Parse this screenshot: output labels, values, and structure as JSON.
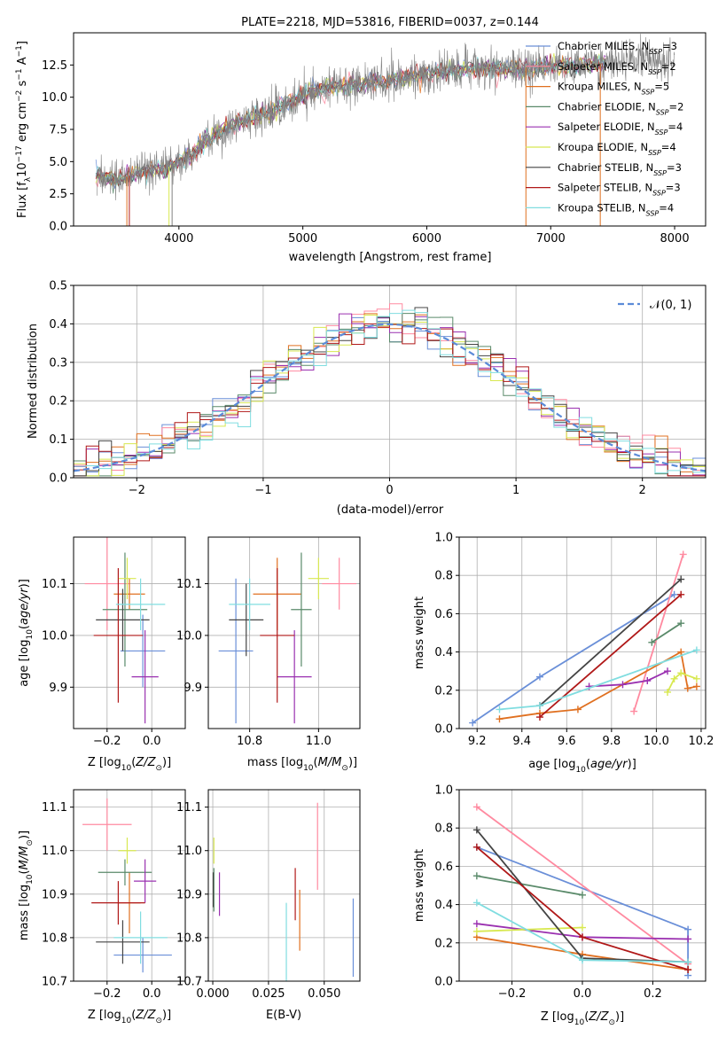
{
  "chart_data": [
    {
      "type": "line",
      "title": "PLATE=2218, MJD=53816, FIBERID=0037, z=0.144",
      "xlabel": "wavelength [Angstrom, rest frame]",
      "ylabel": "Flux [f_λ10^-17 erg cm^-2 s^-1 A^-1]",
      "xlim": [
        3150,
        8250
      ],
      "ylim": [
        0,
        15
      ],
      "xticks": [
        "4000",
        "5000",
        "6000",
        "7000",
        "8000"
      ],
      "yticks": [
        "0.0",
        "2.5",
        "5.0",
        "7.5",
        "10.0",
        "12.5"
      ],
      "observed_color": "#808080",
      "legend_position": "upper-right",
      "series": [
        {
          "name": "Chabrier MILES, N_SSP=3",
          "color": "#6a8fd8"
        },
        {
          "name": "Salpeter MILES, N_SSP=2",
          "color": "#ff8aa0"
        },
        {
          "name": "Kroupa MILES, N_SSP=5",
          "color": "#e07020"
        },
        {
          "name": "Chabrier ELODIE, N_SSP=2",
          "color": "#5a8a6a"
        },
        {
          "name": "Salpeter ELODIE, N_SSP=4",
          "color": "#9a30b0"
        },
        {
          "name": "Kroupa ELODIE, N_SSP=4",
          "color": "#d8e850"
        },
        {
          "name": "Chabrier STELIB, N_SSP=3",
          "color": "#444444"
        },
        {
          "name": "Salpeter STELIB, N_SSP=3",
          "color": "#b01818"
        },
        {
          "name": "Kroupa STELIB, N_SSP=4",
          "color": "#80dde0"
        }
      ],
      "spectrum_envelope": {
        "wavelength": [
          3350,
          3500,
          3700,
          3900,
          4100,
          4300,
          4500,
          4800,
          5000,
          5200,
          5500,
          5800,
          6000,
          6300,
          6600,
          7000,
          7400,
          7800,
          8000
        ],
        "flux": [
          3.8,
          3.6,
          4.2,
          4.5,
          5.5,
          7.2,
          8.2,
          9.1,
          10.2,
          10.8,
          11.0,
          11.5,
          11.8,
          12.2,
          12.2,
          12.4,
          12.6,
          12.8,
          12.9
        ]
      }
    },
    {
      "type": "line",
      "xlabel": "(data-model)/error",
      "ylabel": "Normed distribution",
      "xlim": [
        -2.5,
        2.5
      ],
      "ylim": [
        0,
        0.5
      ],
      "xticks": [
        "−2",
        "−1",
        "0",
        "1",
        "2"
      ],
      "yticks": [
        "0.0",
        "0.1",
        "0.2",
        "0.3",
        "0.4",
        "0.5"
      ],
      "legend": "𝒩(0, 1)",
      "reference_color": "#5b8bd8",
      "histogram_bins": [
        -2.5,
        -2.4,
        -2.3,
        -2.2,
        -2.1,
        -2.0,
        -1.9,
        -1.8,
        -1.7,
        -1.6,
        -1.5,
        -1.4,
        -1.3,
        -1.2,
        -1.1,
        -1.0,
        -0.9,
        -0.8,
        -0.7,
        -0.6,
        -0.5,
        -0.4,
        -0.3,
        -0.2,
        -0.1,
        0.0,
        0.1,
        0.2,
        0.3,
        0.4,
        0.5,
        0.6,
        0.7,
        0.8,
        0.9,
        1.0,
        1.1,
        1.2,
        1.3,
        1.4,
        1.5,
        1.6,
        1.7,
        1.8,
        1.9,
        2.0,
        2.1,
        2.2,
        2.3,
        2.4,
        2.5
      ]
    },
    {
      "type": "scatter",
      "xlabel": "Z [log10(Z/Z☉)]",
      "ylabel": "age  [log10(age/yr)]",
      "xlim": [
        -0.35,
        0.15
      ],
      "ylim": [
        9.82,
        10.19
      ],
      "xticks": [
        "−0.2",
        "0.0"
      ],
      "yticks": [
        "9.9",
        "10.0",
        "10.1"
      ],
      "points": [
        {
          "x": -0.04,
          "y": 9.97,
          "xerr": 0.1,
          "yerr": 0.07,
          "color": "#6a8fd8"
        },
        {
          "x": -0.2,
          "y": 10.1,
          "xerr": 0.1,
          "yerr": 0.09,
          "color": "#ff8aa0"
        },
        {
          "x": -0.1,
          "y": 10.08,
          "xerr": 0.07,
          "yerr": 0.03,
          "color": "#e07020"
        },
        {
          "x": -0.12,
          "y": 10.05,
          "xerr": 0.1,
          "yerr": 0.11,
          "color": "#5a8a6a"
        },
        {
          "x": -0.03,
          "y": 9.92,
          "xerr": 0.06,
          "yerr": 0.09,
          "color": "#9a30b0"
        },
        {
          "x": -0.11,
          "y": 10.11,
          "xerr": 0.04,
          "yerr": 0.04,
          "color": "#d8e850"
        },
        {
          "x": -0.13,
          "y": 10.03,
          "xerr": 0.12,
          "yerr": 0.06,
          "color": "#444444"
        },
        {
          "x": -0.15,
          "y": 10.0,
          "xerr": 0.11,
          "yerr": 0.13,
          "color": "#b01818"
        },
        {
          "x": -0.05,
          "y": 10.06,
          "xerr": 0.11,
          "yerr": 0.05,
          "color": "#80dde0"
        }
      ]
    },
    {
      "type": "scatter",
      "xlabel": "mass [log10(M/M☉)]",
      "ylabel": "",
      "xlim": [
        10.68,
        11.12
      ],
      "ylim": [
        9.82,
        10.19
      ],
      "xticks": [
        "10.8",
        "11.0"
      ],
      "yticks": [
        "9.9",
        "10.0",
        "10.1"
      ],
      "points": [
        {
          "x": 10.76,
          "y": 9.97,
          "xerr": 0.05,
          "yerr": 0.14,
          "color": "#6a8fd8"
        },
        {
          "x": 11.06,
          "y": 10.1,
          "xerr": 0.05,
          "yerr": 0.05,
          "color": "#ff8aa0"
        },
        {
          "x": 10.88,
          "y": 10.08,
          "xerr": 0.07,
          "yerr": 0.07,
          "color": "#e07020"
        },
        {
          "x": 10.95,
          "y": 10.05,
          "xerr": 0.03,
          "yerr": 0.11,
          "color": "#5a8a6a"
        },
        {
          "x": 10.93,
          "y": 9.92,
          "xerr": 0.05,
          "yerr": 0.09,
          "color": "#9a30b0"
        },
        {
          "x": 11.0,
          "y": 10.11,
          "xerr": 0.03,
          "yerr": 0.04,
          "color": "#d8e850"
        },
        {
          "x": 10.79,
          "y": 10.03,
          "xerr": 0.05,
          "yerr": 0.07,
          "color": "#444444"
        },
        {
          "x": 10.88,
          "y": 10.0,
          "xerr": 0.05,
          "yerr": 0.13,
          "color": "#b01818"
        },
        {
          "x": 10.8,
          "y": 10.06,
          "xerr": 0.06,
          "yerr": 0.05,
          "color": "#80dde0"
        }
      ]
    },
    {
      "type": "line",
      "xlabel": "age  [log10(age/yr)]",
      "ylabel": "mass weight",
      "xlim": [
        9.12,
        10.22
      ],
      "ylim": [
        0,
        1
      ],
      "xticks": [
        "9.2",
        "9.4",
        "9.6",
        "9.8",
        "10.0",
        "10.2"
      ],
      "yticks": [
        "0.0",
        "0.2",
        "0.4",
        "0.6",
        "0.8",
        "1.0"
      ],
      "series": [
        {
          "color": "#6a8fd8",
          "x": [
            9.18,
            9.48,
            10.08
          ],
          "y": [
            0.03,
            0.27,
            0.7
          ]
        },
        {
          "color": "#ff8aa0",
          "x": [
            9.9,
            10.12
          ],
          "y": [
            0.09,
            0.91
          ]
        },
        {
          "color": "#e07020",
          "x": [
            9.3,
            9.48,
            9.65,
            10.11,
            10.14,
            10.18
          ],
          "y": [
            0.05,
            0.08,
            0.1,
            0.4,
            0.21,
            0.22
          ]
        },
        {
          "color": "#5a8a6a",
          "x": [
            9.98,
            10.11
          ],
          "y": [
            0.45,
            0.55
          ]
        },
        {
          "color": "#9a30b0",
          "x": [
            9.7,
            9.85,
            9.96,
            10.05
          ],
          "y": [
            0.22,
            0.23,
            0.25,
            0.3
          ]
        },
        {
          "color": "#d8e850",
          "x": [
            10.05,
            10.08,
            10.11,
            10.18
          ],
          "y": [
            0.19,
            0.26,
            0.29,
            0.26
          ]
        },
        {
          "color": "#444444",
          "x": [
            9.48,
            10.11
          ],
          "y": [
            0.12,
            0.78
          ]
        },
        {
          "color": "#b01818",
          "x": [
            9.48,
            10.11
          ],
          "y": [
            0.06,
            0.7
          ]
        },
        {
          "color": "#80dde0",
          "x": [
            9.3,
            9.48,
            10.18
          ],
          "y": [
            0.1,
            0.12,
            0.41
          ]
        }
      ]
    },
    {
      "type": "scatter",
      "xlabel": "Z [log10(Z/Z☉)]",
      "ylabel": "mass [log10(M/M☉)]",
      "xlim": [
        -0.35,
        0.15
      ],
      "ylim": [
        10.7,
        11.14
      ],
      "xticks": [
        "−0.2",
        "0.0"
      ],
      "yticks": [
        "10.7",
        "10.8",
        "10.9",
        "11.0",
        "11.1"
      ],
      "points": [
        {
          "x": -0.04,
          "y": 10.76,
          "xerr": 0.13,
          "yerr": 0.04,
          "color": "#6a8fd8"
        },
        {
          "x": -0.2,
          "y": 11.06,
          "xerr": 0.11,
          "yerr": 0.06,
          "color": "#ff8aa0"
        },
        {
          "x": -0.1,
          "y": 10.88,
          "xerr": 0.05,
          "yerr": 0.07,
          "color": "#e07020"
        },
        {
          "x": -0.12,
          "y": 10.95,
          "xerr": 0.12,
          "yerr": 0.03,
          "color": "#5a8a6a"
        },
        {
          "x": -0.03,
          "y": 10.93,
          "xerr": 0.05,
          "yerr": 0.05,
          "color": "#9a30b0"
        },
        {
          "x": -0.11,
          "y": 11.0,
          "xerr": 0.04,
          "yerr": 0.03,
          "color": "#d8e850"
        },
        {
          "x": -0.13,
          "y": 10.79,
          "xerr": 0.12,
          "yerr": 0.05,
          "color": "#444444"
        },
        {
          "x": -0.15,
          "y": 10.88,
          "xerr": 0.12,
          "yerr": 0.05,
          "color": "#b01818"
        },
        {
          "x": -0.05,
          "y": 10.8,
          "xerr": 0.12,
          "yerr": 0.06,
          "color": "#80dde0"
        }
      ]
    },
    {
      "type": "scatter",
      "xlabel": "E(B-V)",
      "ylabel": "",
      "xlim": [
        -0.002,
        0.066
      ],
      "ylim": [
        10.7,
        11.14
      ],
      "xticks": [
        "0.000",
        "0.025",
        "0.050"
      ],
      "yticks": [
        "10.7",
        "10.8",
        "10.9",
        "11.0",
        "11.1"
      ],
      "points": [
        {
          "x": 0.063,
          "y": 10.8,
          "xerr": 0,
          "yerr": 0.09,
          "color": "#6a8fd8"
        },
        {
          "x": 0.047,
          "y": 11.01,
          "xerr": 0,
          "yerr": 0.1,
          "color": "#ff8aa0"
        },
        {
          "x": 0.039,
          "y": 10.84,
          "xerr": 0,
          "yerr": 0.07,
          "color": "#e07020"
        },
        {
          "x": 0.0005,
          "y": 10.91,
          "xerr": 0,
          "yerr": 0.05,
          "color": "#5a8a6a"
        },
        {
          "x": 0.003,
          "y": 10.9,
          "xerr": 0,
          "yerr": 0.05,
          "color": "#9a30b0"
        },
        {
          "x": 0.0005,
          "y": 11.0,
          "xerr": 0,
          "yerr": 0.03,
          "color": "#d8e850"
        },
        {
          "x": 0.0002,
          "y": 10.91,
          "xerr": 0,
          "yerr": 0.04,
          "color": "#444444"
        },
        {
          "x": 0.037,
          "y": 10.9,
          "xerr": 0,
          "yerr": 0.06,
          "color": "#b01818"
        },
        {
          "x": 0.033,
          "y": 10.79,
          "xerr": 0,
          "yerr": 0.09,
          "color": "#80dde0"
        }
      ]
    },
    {
      "type": "line",
      "xlabel": "Z [log10(Z/Z☉)]",
      "ylabel": "mass weight",
      "xlim": [
        -0.35,
        0.35
      ],
      "ylim": [
        0,
        1
      ],
      "xticks": [
        "−0.2",
        "0.0",
        "0.2"
      ],
      "yticks": [
        "0.0",
        "0.2",
        "0.4",
        "0.6",
        "0.8",
        "1.0"
      ],
      "series": [
        {
          "color": "#6a8fd8",
          "x": [
            -0.3,
            0.3,
            0.3
          ],
          "y": [
            0.7,
            0.27,
            0.03
          ]
        },
        {
          "color": "#ff8aa0",
          "x": [
            -0.3,
            0.3
          ],
          "y": [
            0.91,
            0.09
          ]
        },
        {
          "color": "#e07020",
          "x": [
            -0.3,
            0.0,
            0.3
          ],
          "y": [
            0.23,
            0.14,
            0.06
          ]
        },
        {
          "color": "#5a8a6a",
          "x": [
            -0.3,
            0.0
          ],
          "y": [
            0.55,
            0.45
          ]
        },
        {
          "color": "#9a30b0",
          "x": [
            -0.3,
            0.0,
            0.3
          ],
          "y": [
            0.3,
            0.23,
            0.22
          ]
        },
        {
          "color": "#d8e850",
          "x": [
            -0.3,
            0.0
          ],
          "y": [
            0.26,
            0.28
          ]
        },
        {
          "color": "#444444",
          "x": [
            -0.3,
            0.0,
            0.3
          ],
          "y": [
            0.79,
            0.12,
            0.1
          ]
        },
        {
          "color": "#b01818",
          "x": [
            -0.3,
            0.0,
            0.3
          ],
          "y": [
            0.7,
            0.23,
            0.06
          ]
        },
        {
          "color": "#80dde0",
          "x": [
            -0.3,
            0.0,
            0.3
          ],
          "y": [
            0.41,
            0.11,
            0.1
          ]
        }
      ]
    }
  ]
}
